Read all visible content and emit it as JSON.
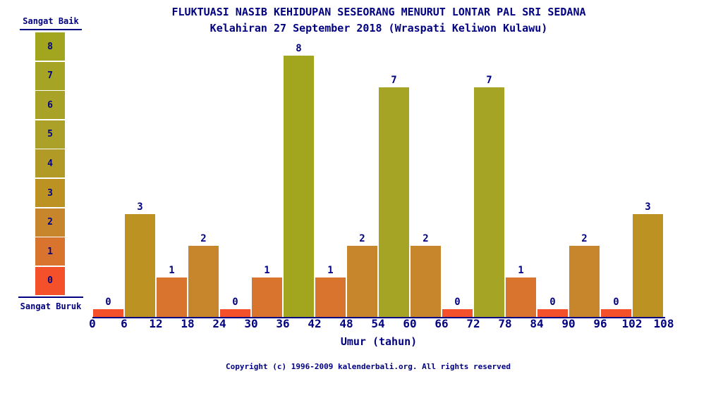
{
  "title": "FLUKTUASI NASIB KEHIDUPAN SESEORANG MENURUT LONTAR PAL SRI SEDANA",
  "subtitle": "Kelahiran 27 September 2018 (Wraspati Keliwon Kulawu)",
  "legend": {
    "top_label": "Sangat Baik",
    "bottom_label": "Sangat Buruk",
    "scale": [
      8,
      7,
      6,
      5,
      4,
      3,
      2,
      1,
      0
    ]
  },
  "chart_data": {
    "type": "bar",
    "x_ticks": [
      0,
      6,
      12,
      18,
      24,
      30,
      36,
      42,
      48,
      54,
      60,
      66,
      72,
      78,
      84,
      90,
      96,
      102,
      108
    ],
    "bar_age_ranges": [
      "0-6",
      "6-12",
      "12-18",
      "18-24",
      "24-30",
      "30-36",
      "36-42",
      "42-48",
      "48-54",
      "54-60",
      "60-66",
      "66-72",
      "72-78",
      "78-84",
      "84-90",
      "90-96",
      "96-102",
      "102-108"
    ],
    "values": [
      0,
      3,
      1,
      2,
      0,
      1,
      8,
      1,
      2,
      7,
      2,
      0,
      7,
      1,
      0,
      2,
      0,
      3
    ],
    "xlabel": "Umur (tahun)",
    "ylim": [
      0,
      8
    ],
    "grid": false,
    "legend_position": "left",
    "value_colors": {
      "0": "#F4502A",
      "1": "#D8742E",
      "2": "#C8862C",
      "3": "#BC9222",
      "4": "#B19A26",
      "5": "#ABA028",
      "6": "#A8A226",
      "7": "#A6A424",
      "8": "#A1A61E"
    }
  },
  "colors": {
    "text": "#000080",
    "axis": "#000080",
    "background": "#ffffff"
  },
  "footer": {
    "copyright": "Copyright (c) 1996-2009 kalenderbali.org. All rights reserved"
  }
}
